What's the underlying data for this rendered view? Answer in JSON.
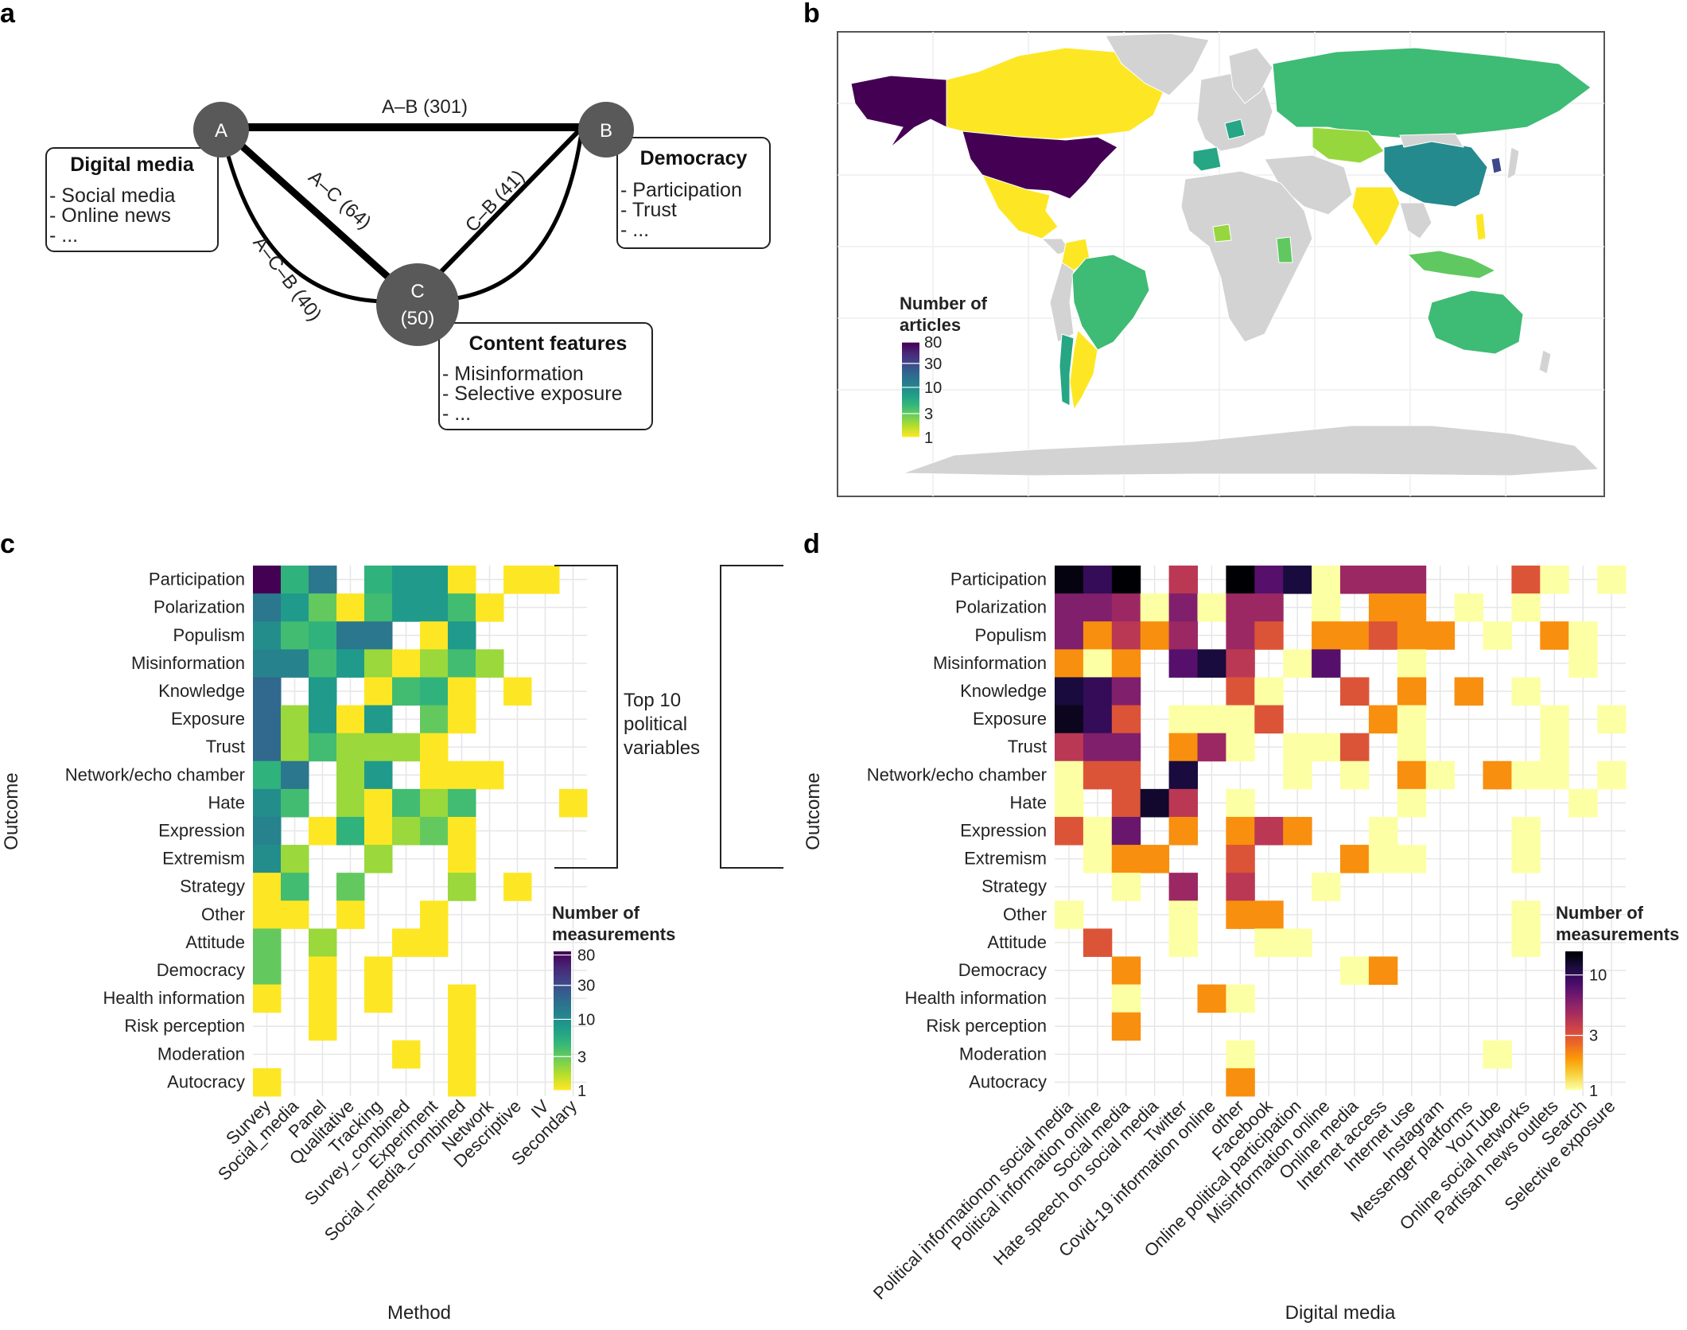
{
  "panels": {
    "a": "a",
    "b": "b",
    "c": "c",
    "d": "d"
  },
  "network": {
    "nodes": [
      {
        "id": "A",
        "label": "A",
        "count": ""
      },
      {
        "id": "B",
        "label": "B",
        "count": ""
      },
      {
        "id": "C",
        "label": "C",
        "count": "(50)"
      }
    ],
    "edges": [
      {
        "label": "A–B (301)",
        "value": 301
      },
      {
        "label": "A–C (64)",
        "value": 64
      },
      {
        "label": "C–B (41)",
        "value": 41
      },
      {
        "label": "A–C–B (40)",
        "value": 40
      }
    ],
    "boxes": {
      "A": {
        "title": "Digital media",
        "items": [
          "- Social media",
          "- Online news",
          "- ..."
        ]
      },
      "B": {
        "title": "Democracy",
        "items": [
          "- Participation",
          "- Trust",
          "- ..."
        ]
      },
      "C": {
        "title": "Content features",
        "items": [
          "- Misinformation",
          "- Selective exposure",
          "- ..."
        ]
      }
    }
  },
  "map": {
    "legend_title_1": "Number of",
    "legend_title_2": "articles",
    "legend_ticks": [
      "80",
      "30",
      "10",
      "3",
      "1"
    ],
    "legend_tick_values": [
      80,
      30,
      10,
      3,
      1
    ],
    "no_data_color": "#d3d3d3",
    "countries": [
      {
        "region": "United States",
        "value": 80
      },
      {
        "region": "Alaska",
        "value": 80
      },
      {
        "region": "Canada",
        "value": 1
      },
      {
        "region": "Greenland",
        "value": 0
      },
      {
        "region": "Mexico",
        "value": 1
      },
      {
        "region": "Brazil",
        "value": 4
      },
      {
        "region": "Chile",
        "value": 6
      },
      {
        "region": "Argentina",
        "value": 1
      },
      {
        "region": "Colombia",
        "value": 1
      },
      {
        "region": "Russia",
        "value": 4
      },
      {
        "region": "China",
        "value": 10
      },
      {
        "region": "India",
        "value": 1
      },
      {
        "region": "Australia",
        "value": 4
      },
      {
        "region": "Africa",
        "value": 0
      },
      {
        "region": "Nigeria",
        "value": 2
      },
      {
        "region": "Kenya",
        "value": 3
      },
      {
        "region": "Kazakhstan",
        "value": 2
      },
      {
        "region": "Spain",
        "value": 6
      },
      {
        "region": "Germany",
        "value": 6
      },
      {
        "region": "South Korea",
        "value": 30
      },
      {
        "region": "Indonesia",
        "value": 3
      },
      {
        "region": "Philippines",
        "value": 1
      },
      {
        "region": "Antarctica",
        "value": 0
      }
    ]
  },
  "chart_data": [
    {
      "type": "heatmap",
      "panel": "c",
      "xlabel": "Method",
      "ylabel": "Outcome",
      "x": [
        "Survey",
        "Social_media",
        "Panel",
        "Qualitative",
        "Tracking",
        "Survey_combined",
        "Experiment",
        "Social_media_combined",
        "Network",
        "Descriptive",
        "IV",
        "Secondary"
      ],
      "y": [
        "Participation",
        "Polarization",
        "Populism",
        "Misinformation",
        "Knowledge",
        "Exposure",
        "Trust",
        "Network/echo chamber",
        "Hate",
        "Expression",
        "Extremism",
        "Strategy",
        "Other",
        "Attitude",
        "Democracy",
        "Health information",
        "Risk perception",
        "Moderation",
        "Autocracy"
      ],
      "values": [
        [
          90,
          5,
          15,
          null,
          5,
          8,
          8,
          1,
          null,
          1,
          1,
          null
        ],
        [
          15,
          8,
          3,
          1,
          4,
          8,
          8,
          4,
          1,
          null,
          null,
          null
        ],
        [
          10,
          4,
          5,
          15,
          15,
          null,
          1,
          8,
          null,
          null,
          null,
          null
        ],
        [
          12,
          12,
          4,
          8,
          2,
          1,
          2,
          4,
          2,
          null,
          null,
          null
        ],
        [
          20,
          null,
          8,
          null,
          1,
          4,
          5,
          1,
          null,
          1,
          null,
          null
        ],
        [
          20,
          2,
          8,
          1,
          8,
          null,
          3,
          1,
          null,
          null,
          null,
          null
        ],
        [
          20,
          2,
          4,
          2,
          2,
          2,
          1,
          null,
          null,
          null,
          null,
          null
        ],
        [
          5,
          15,
          null,
          2,
          8,
          null,
          1,
          1,
          1,
          null,
          null,
          null
        ],
        [
          10,
          4,
          null,
          2,
          1,
          4,
          2,
          4,
          null,
          null,
          null,
          1
        ],
        [
          12,
          null,
          1,
          5,
          1,
          2,
          3,
          1,
          null,
          null,
          null,
          null
        ],
        [
          10,
          2,
          null,
          null,
          2,
          null,
          null,
          1,
          null,
          null,
          null,
          null
        ],
        [
          1,
          4,
          null,
          3,
          null,
          null,
          null,
          2,
          null,
          1,
          null,
          null
        ],
        [
          1,
          1,
          null,
          1,
          null,
          null,
          1,
          null,
          null,
          null,
          null,
          null
        ],
        [
          3,
          null,
          2,
          null,
          null,
          1,
          1,
          null,
          null,
          null,
          null,
          null
        ],
        [
          3,
          null,
          1,
          null,
          1,
          null,
          null,
          null,
          null,
          null,
          null,
          null
        ],
        [
          1,
          null,
          1,
          null,
          1,
          null,
          null,
          1,
          null,
          null,
          null,
          null
        ],
        [
          null,
          null,
          1,
          null,
          null,
          null,
          null,
          1,
          null,
          null,
          null,
          null
        ],
        [
          null,
          null,
          null,
          null,
          null,
          1,
          null,
          1,
          null,
          null,
          null,
          null
        ],
        [
          1,
          null,
          null,
          null,
          null,
          null,
          null,
          1,
          null,
          null,
          null,
          null
        ]
      ],
      "legend_title_1": "Number of",
      "legend_title_2": "measurements",
      "legend_ticks": [
        "80",
        "30",
        "10",
        "3",
        "1"
      ],
      "legend_tick_values": [
        80,
        30,
        10,
        3,
        1
      ],
      "color_scale": "viridis (log)",
      "bracket_label_1": "Top 10",
      "bracket_label_2": "political",
      "bracket_label_3": "variables"
    },
    {
      "type": "heatmap",
      "panel": "d",
      "xlabel": "Digital media",
      "ylabel": "Outcome",
      "x": [
        "Political informationon social media",
        "Political information online",
        "Social media",
        "Hate speech on social media",
        "Twitter",
        "Covid-19 information online",
        "other",
        "Facebook",
        "Online political participation",
        "Misinformation online",
        "Online media",
        "Internet access",
        "Internet use",
        "Instagram",
        "Messenger platforms",
        "YouTube",
        "Online social networks",
        "Partisan news outlets",
        "Search",
        "Selective exposure"
      ],
      "y": [
        "Participation",
        "Polarization",
        "Populism",
        "Misinformation",
        "Knowledge",
        "Exposure",
        "Trust",
        "Network/echo chamber",
        "Hate",
        "Expression",
        "Extremism",
        "Strategy",
        "Other",
        "Attitude",
        "Democracy",
        "Health information",
        "Risk perception",
        "Moderation",
        "Autocracy"
      ],
      "values": [
        [
          15,
          10,
          16,
          null,
          4,
          null,
          16,
          8,
          12,
          1,
          5,
          5,
          5,
          null,
          null,
          null,
          3,
          1,
          null,
          1
        ],
        [
          6,
          6,
          5,
          1,
          6,
          1,
          5,
          5,
          null,
          1,
          null,
          2,
          2,
          null,
          1,
          null,
          1,
          null,
          null,
          null
        ],
        [
          6,
          2,
          4,
          2,
          5,
          null,
          5,
          3,
          null,
          2,
          2,
          3,
          2,
          2,
          null,
          1,
          null,
          2,
          1,
          null
        ],
        [
          2,
          1,
          2,
          null,
          8,
          12,
          4,
          null,
          1,
          8,
          null,
          null,
          1,
          null,
          null,
          null,
          null,
          null,
          1,
          null
        ],
        [
          12,
          10,
          6,
          null,
          null,
          null,
          3,
          1,
          null,
          null,
          3,
          null,
          2,
          null,
          2,
          null,
          1,
          null,
          null,
          null
        ],
        [
          14,
          10,
          3,
          null,
          1,
          1,
          1,
          3,
          null,
          null,
          null,
          2,
          1,
          null,
          null,
          null,
          null,
          1,
          null,
          1
        ],
        [
          4,
          6,
          6,
          null,
          2,
          5,
          1,
          null,
          1,
          1,
          3,
          null,
          1,
          null,
          null,
          null,
          null,
          1,
          null,
          null
        ],
        [
          1,
          3,
          3,
          null,
          12,
          null,
          null,
          null,
          1,
          null,
          1,
          null,
          2,
          1,
          null,
          2,
          1,
          1,
          null,
          1
        ],
        [
          1,
          null,
          3,
          13,
          4,
          null,
          1,
          null,
          null,
          null,
          null,
          null,
          1,
          null,
          null,
          null,
          null,
          null,
          1,
          null
        ],
        [
          3,
          1,
          7,
          null,
          2,
          null,
          2,
          4,
          2,
          null,
          null,
          1,
          null,
          null,
          null,
          null,
          1,
          null,
          null,
          null
        ],
        [
          null,
          1,
          2,
          2,
          null,
          null,
          3,
          null,
          null,
          null,
          2,
          1,
          1,
          null,
          null,
          null,
          1,
          null,
          null,
          null
        ],
        [
          null,
          null,
          1,
          null,
          5,
          null,
          4,
          null,
          null,
          1,
          null,
          null,
          null,
          null,
          null,
          null,
          null,
          null,
          null,
          null
        ],
        [
          1,
          null,
          null,
          null,
          1,
          null,
          2,
          2,
          null,
          null,
          null,
          null,
          null,
          null,
          null,
          null,
          1,
          null,
          null,
          null
        ],
        [
          null,
          3,
          null,
          null,
          1,
          null,
          null,
          1,
          1,
          null,
          null,
          null,
          null,
          null,
          null,
          null,
          1,
          null,
          null,
          null
        ],
        [
          null,
          null,
          2,
          null,
          null,
          null,
          null,
          null,
          null,
          null,
          1,
          2,
          null,
          null,
          null,
          null,
          null,
          null,
          null,
          null
        ],
        [
          null,
          null,
          1,
          null,
          null,
          2,
          1,
          null,
          null,
          null,
          null,
          null,
          null,
          null,
          null,
          null,
          null,
          null,
          null,
          null
        ],
        [
          null,
          null,
          2,
          null,
          null,
          null,
          null,
          null,
          null,
          null,
          null,
          null,
          null,
          null,
          null,
          null,
          null,
          null,
          null,
          null
        ],
        [
          null,
          null,
          null,
          null,
          null,
          null,
          1,
          null,
          null,
          null,
          null,
          null,
          null,
          null,
          null,
          1,
          null,
          null,
          null,
          null
        ],
        [
          null,
          null,
          null,
          null,
          null,
          null,
          2,
          null,
          null,
          null,
          null,
          null,
          null,
          null,
          null,
          null,
          null,
          null,
          null,
          null
        ]
      ],
      "legend_title_1": "Number of",
      "legend_title_2": "measurements",
      "legend_ticks": [
        "10",
        "3",
        "1"
      ],
      "legend_tick_values": [
        10,
        3,
        1
      ],
      "color_scale": "inferno (log)"
    }
  ]
}
